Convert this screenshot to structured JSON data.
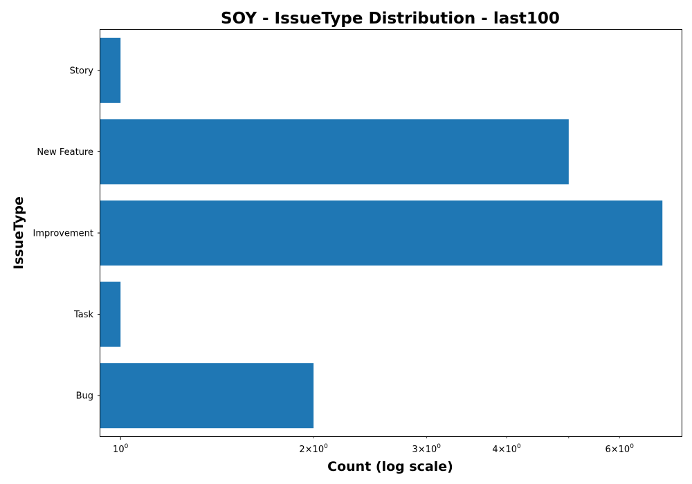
{
  "chart_data": {
    "type": "bar",
    "orientation": "horizontal",
    "title": "SOY - IssueType Distribution - last100",
    "xlabel": "Count (log scale)",
    "ylabel": "IssueType",
    "x_scale": "log",
    "xlim": [
      0.93,
      7.5
    ],
    "categories": [
      "Bug",
      "Task",
      "Improvement",
      "New Feature",
      "Story"
    ],
    "values": [
      2,
      1,
      7,
      5,
      1
    ],
    "bar_color": "#1f77b4",
    "x_major_ticks": [
      {
        "value": 1,
        "base": "10",
        "exp": "0"
      }
    ],
    "x_minor_ticks": [
      {
        "value": 2,
        "mantissa": "2",
        "base": "10",
        "exp": "0"
      },
      {
        "value": 3,
        "mantissa": "3",
        "base": "10",
        "exp": "0"
      },
      {
        "value": 4,
        "mantissa": "4",
        "base": "10",
        "exp": "0"
      },
      {
        "value": 5
      },
      {
        "value": 6,
        "mantissa": "6",
        "base": "10",
        "exp": "0"
      }
    ],
    "grid": false,
    "legend": "none"
  }
}
